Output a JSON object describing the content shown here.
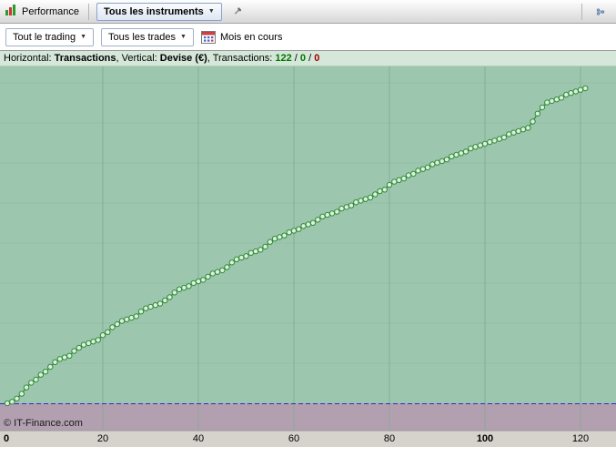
{
  "toolbar": {
    "performance_label": "Performance",
    "instruments_dropdown": "Tous les instruments",
    "trading_scope_dropdown": "Tout le trading",
    "trades_dropdown": "Tous les trades",
    "period_label": "Mois en cours"
  },
  "chart_header": {
    "h_label": "Horizontal: ",
    "h_value": "Transactions",
    "v_label": ", Vertical: ",
    "v_value": "Devise (€)",
    "t_label": ", Transactions: ",
    "total": "122",
    "slash1": " / ",
    "open": "0",
    "slash2": " / ",
    "neg": "0"
  },
  "watermark": "© IT-Finance.com",
  "colors": {
    "plot_bg": "#9cc7ae",
    "neg_bg": "#b2a0b0",
    "axis_bg": "#d6d3cd",
    "grid_v": "#84a692",
    "grid_h": "#8fb69f",
    "zero_line": "#2b2bd0",
    "series": "#2e8b36",
    "marker_fill": "#ddefdd",
    "header_bg": "#d5e7d9",
    "positive_text": "#007700",
    "negative_text": "#a00000",
    "accent_border": "#8aa4cc"
  },
  "chart_data": {
    "type": "line",
    "title": "Courbe de performance cumulée",
    "xlabel": "Transactions",
    "ylabel": "Devise (€)",
    "x_range": [
      0,
      127
    ],
    "x_ticks": [
      0,
      20,
      40,
      60,
      80,
      100,
      120
    ],
    "bold_ticks": [
      0,
      100
    ],
    "y_note": "no y-axis scale visible; values are relative equity units rising from 0 at zero-line",
    "marker": "circle",
    "zero_line_dashed": true,
    "values": [
      0,
      2,
      6,
      12,
      20,
      26,
      30,
      36,
      40,
      46,
      52,
      56,
      58,
      60,
      66,
      70,
      74,
      76,
      78,
      80,
      86,
      90,
      96,
      100,
      104,
      106,
      108,
      110,
      116,
      120,
      122,
      124,
      126,
      130,
      134,
      140,
      144,
      146,
      148,
      152,
      154,
      156,
      160,
      164,
      166,
      168,
      172,
      178,
      182,
      184,
      186,
      190,
      192,
      194,
      198,
      204,
      208,
      210,
      212,
      216,
      218,
      220,
      224,
      226,
      228,
      232,
      236,
      238,
      240,
      242,
      246,
      248,
      250,
      254,
      256,
      258,
      260,
      264,
      268,
      270,
      276,
      280,
      282,
      284,
      288,
      290,
      294,
      296,
      298,
      302,
      304,
      306,
      308,
      312,
      314,
      316,
      318,
      322,
      324,
      326,
      328,
      330,
      332,
      334,
      336,
      340,
      342,
      344,
      346,
      348,
      356,
      366,
      374,
      380,
      382,
      384,
      386,
      390,
      392,
      394,
      396,
      398
    ]
  }
}
